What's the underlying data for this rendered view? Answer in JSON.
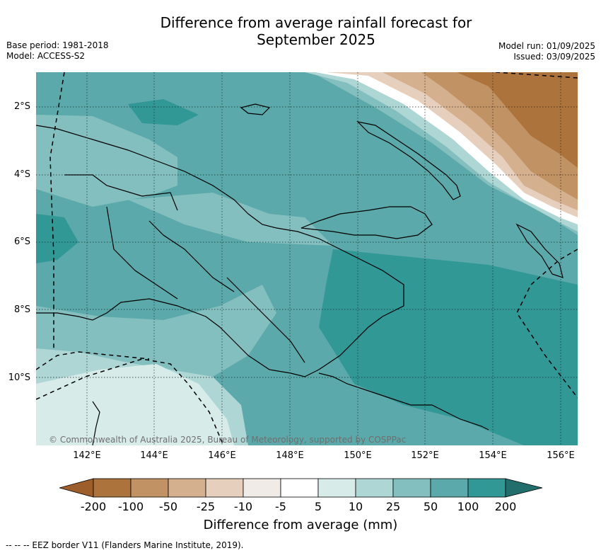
{
  "title": [
    "Difference from average rainfall forecast for",
    "September 2025"
  ],
  "meta_left": [
    "Base period: 1981-2018",
    "Model: ACCESS-S2"
  ],
  "meta_right": [
    "Model run: 01/09/2025",
    "Issued: 03/09/2025"
  ],
  "map": {
    "lat_labels": [
      "2°S",
      "4°S",
      "6°S",
      "8°S",
      "10°S"
    ],
    "lon_labels": [
      "142°E",
      "144°E",
      "146°E",
      "148°E",
      "150°E",
      "152°E",
      "154°E",
      "156°E"
    ],
    "copyright": "© Commonwealth of Australia 2025, Bureau of Meteorology, supported by COSPPac"
  },
  "legend": {
    "title": "Difference from average (mm)",
    "ticks": [
      "-200",
      "-100",
      "-50",
      "-25",
      "-10",
      "-5",
      "5",
      "10",
      "25",
      "50",
      "100",
      "200"
    ],
    "colors": [
      "#9e5e2c",
      "#ac733c",
      "#c19263",
      "#d4b08e",
      "#e6cfbc",
      "#f0ebe6",
      "#ffffff",
      "#d7ebe9",
      "#aed6d5",
      "#84bfbf",
      "#5ba9aa",
      "#319896",
      "#226e6c"
    ]
  },
  "footnote": "--  --  -- EEZ border V11 (Flanders Marine Institute, 2019)."
}
